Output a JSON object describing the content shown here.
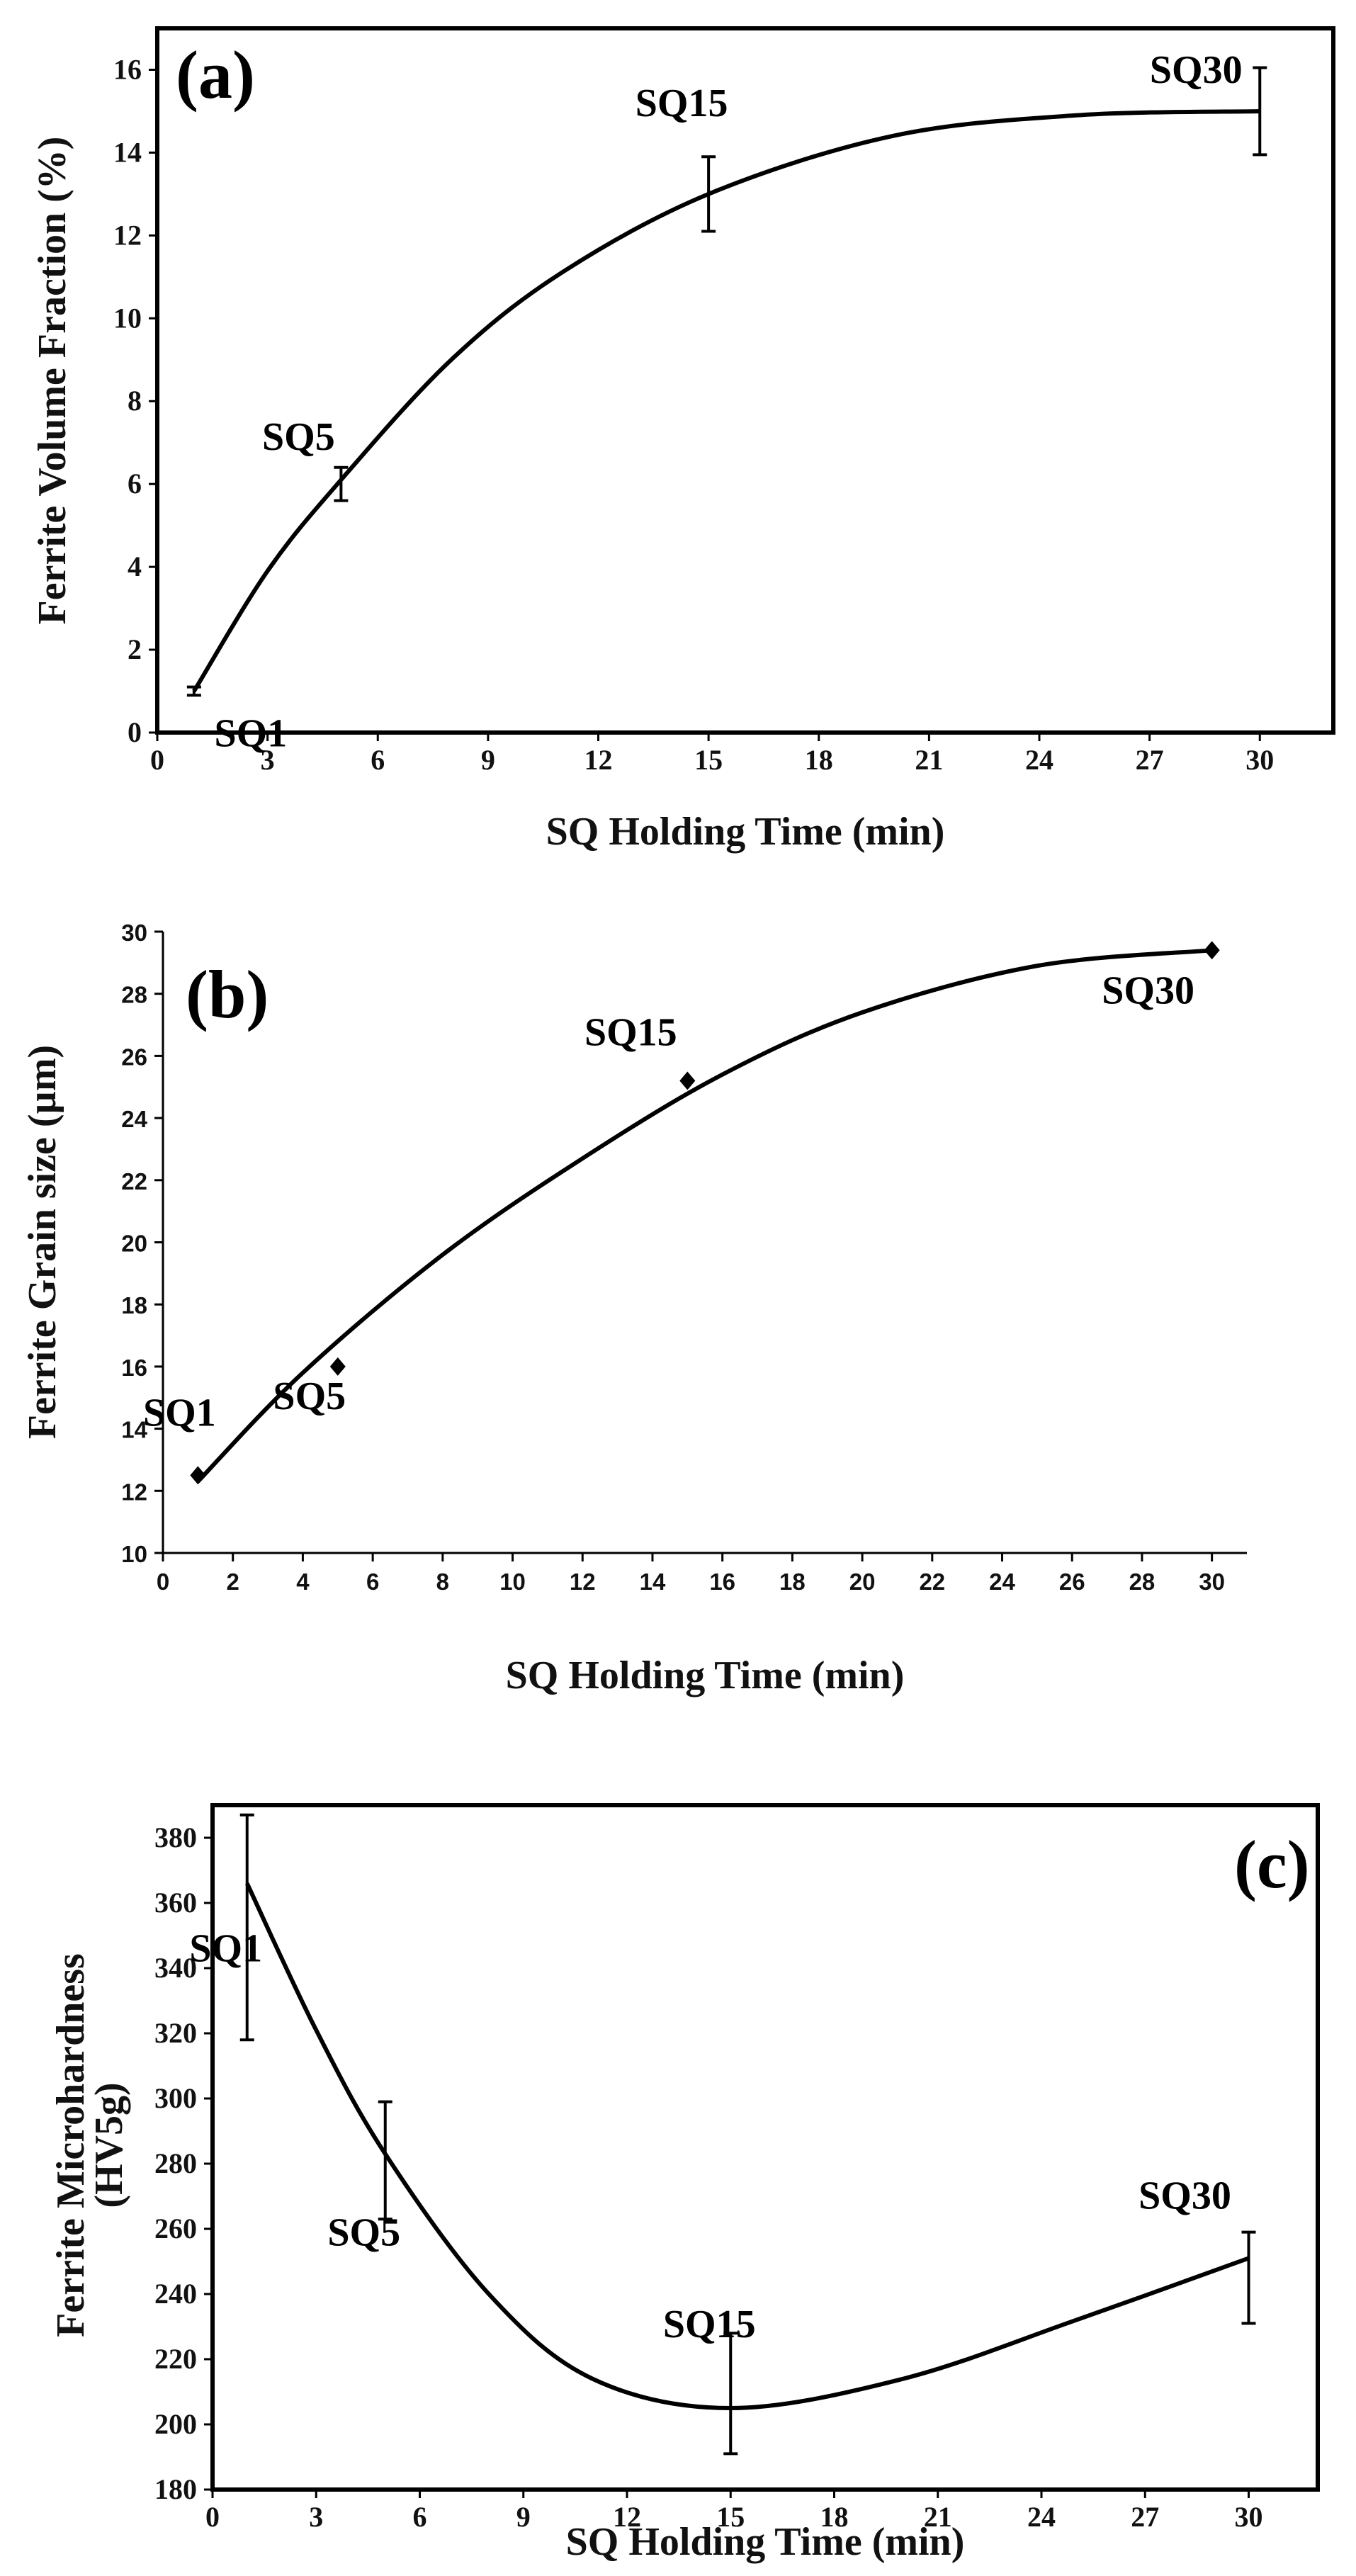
{
  "chart_data": [
    {
      "type": "line",
      "panel": "(a)",
      "xlabel": "SQ Holding Time (min)",
      "ylabel": "Ferrite Volume Fraction (%)",
      "xlim": [
        0,
        32
      ],
      "ylim": [
        0,
        17
      ],
      "xticks": [
        0,
        3,
        6,
        9,
        12,
        15,
        18,
        21,
        24,
        27,
        30
      ],
      "yticks": [
        0,
        2,
        4,
        6,
        8,
        10,
        12,
        14,
        16
      ],
      "points": [
        {
          "label": "SQ1",
          "x": 1,
          "y": 1.0,
          "err": 0.1
        },
        {
          "label": "SQ5",
          "x": 5,
          "y": 6.0,
          "err": 0.4
        },
        {
          "label": "SQ15",
          "x": 15,
          "y": 13.0,
          "err": 0.9
        },
        {
          "label": "SQ30",
          "x": 30,
          "y": 15.0,
          "err": 1.05
        }
      ],
      "curve": "smooth trend line through points",
      "grid": false
    },
    {
      "type": "scatter",
      "panel": "(b)",
      "xlabel": "SQ Holding Time (min)",
      "ylabel": "Ferrite Grain size (µm)",
      "xlim": [
        0,
        31
      ],
      "ylim": [
        10,
        30
      ],
      "xticks": [
        0,
        2,
        4,
        6,
        8,
        10,
        12,
        14,
        16,
        18,
        20,
        22,
        24,
        26,
        28,
        30
      ],
      "yticks": [
        10,
        12,
        14,
        16,
        18,
        20,
        22,
        24,
        26,
        28,
        30
      ],
      "points": [
        {
          "label": "SQ1",
          "x": 1,
          "y": 12.5
        },
        {
          "label": "SQ5",
          "x": 5,
          "y": 16.0
        },
        {
          "label": "SQ15",
          "x": 15,
          "y": 25.2
        },
        {
          "label": "SQ30",
          "x": 30,
          "y": 29.4
        }
      ],
      "curve": "polynomial trend line",
      "grid": false
    },
    {
      "type": "line",
      "panel": "(c)",
      "xlabel": "SQ Holding Time (min)",
      "ylabel": "Ferrite Microhardness (HV5g)",
      "xlim": [
        0,
        32
      ],
      "ylim": [
        180,
        390
      ],
      "xticks": [
        0,
        3,
        6,
        9,
        12,
        15,
        18,
        21,
        24,
        27,
        30
      ],
      "yticks": [
        180,
        200,
        220,
        240,
        260,
        280,
        300,
        320,
        340,
        360,
        380
      ],
      "points": [
        {
          "label": "SQ1",
          "x": 1,
          "y": 366,
          "err_low": 318,
          "err_high": 387
        },
        {
          "label": "SQ5",
          "x": 5,
          "y": 281,
          "err_low": 263,
          "err_high": 299
        },
        {
          "label": "SQ15",
          "x": 15,
          "y": 205,
          "err_low": 191,
          "err_high": 228
        },
        {
          "label": "SQ30",
          "x": 30,
          "y": 251,
          "err_low": 231,
          "err_high": 259
        }
      ],
      "curve": "smooth trend line through points",
      "grid": false
    }
  ]
}
